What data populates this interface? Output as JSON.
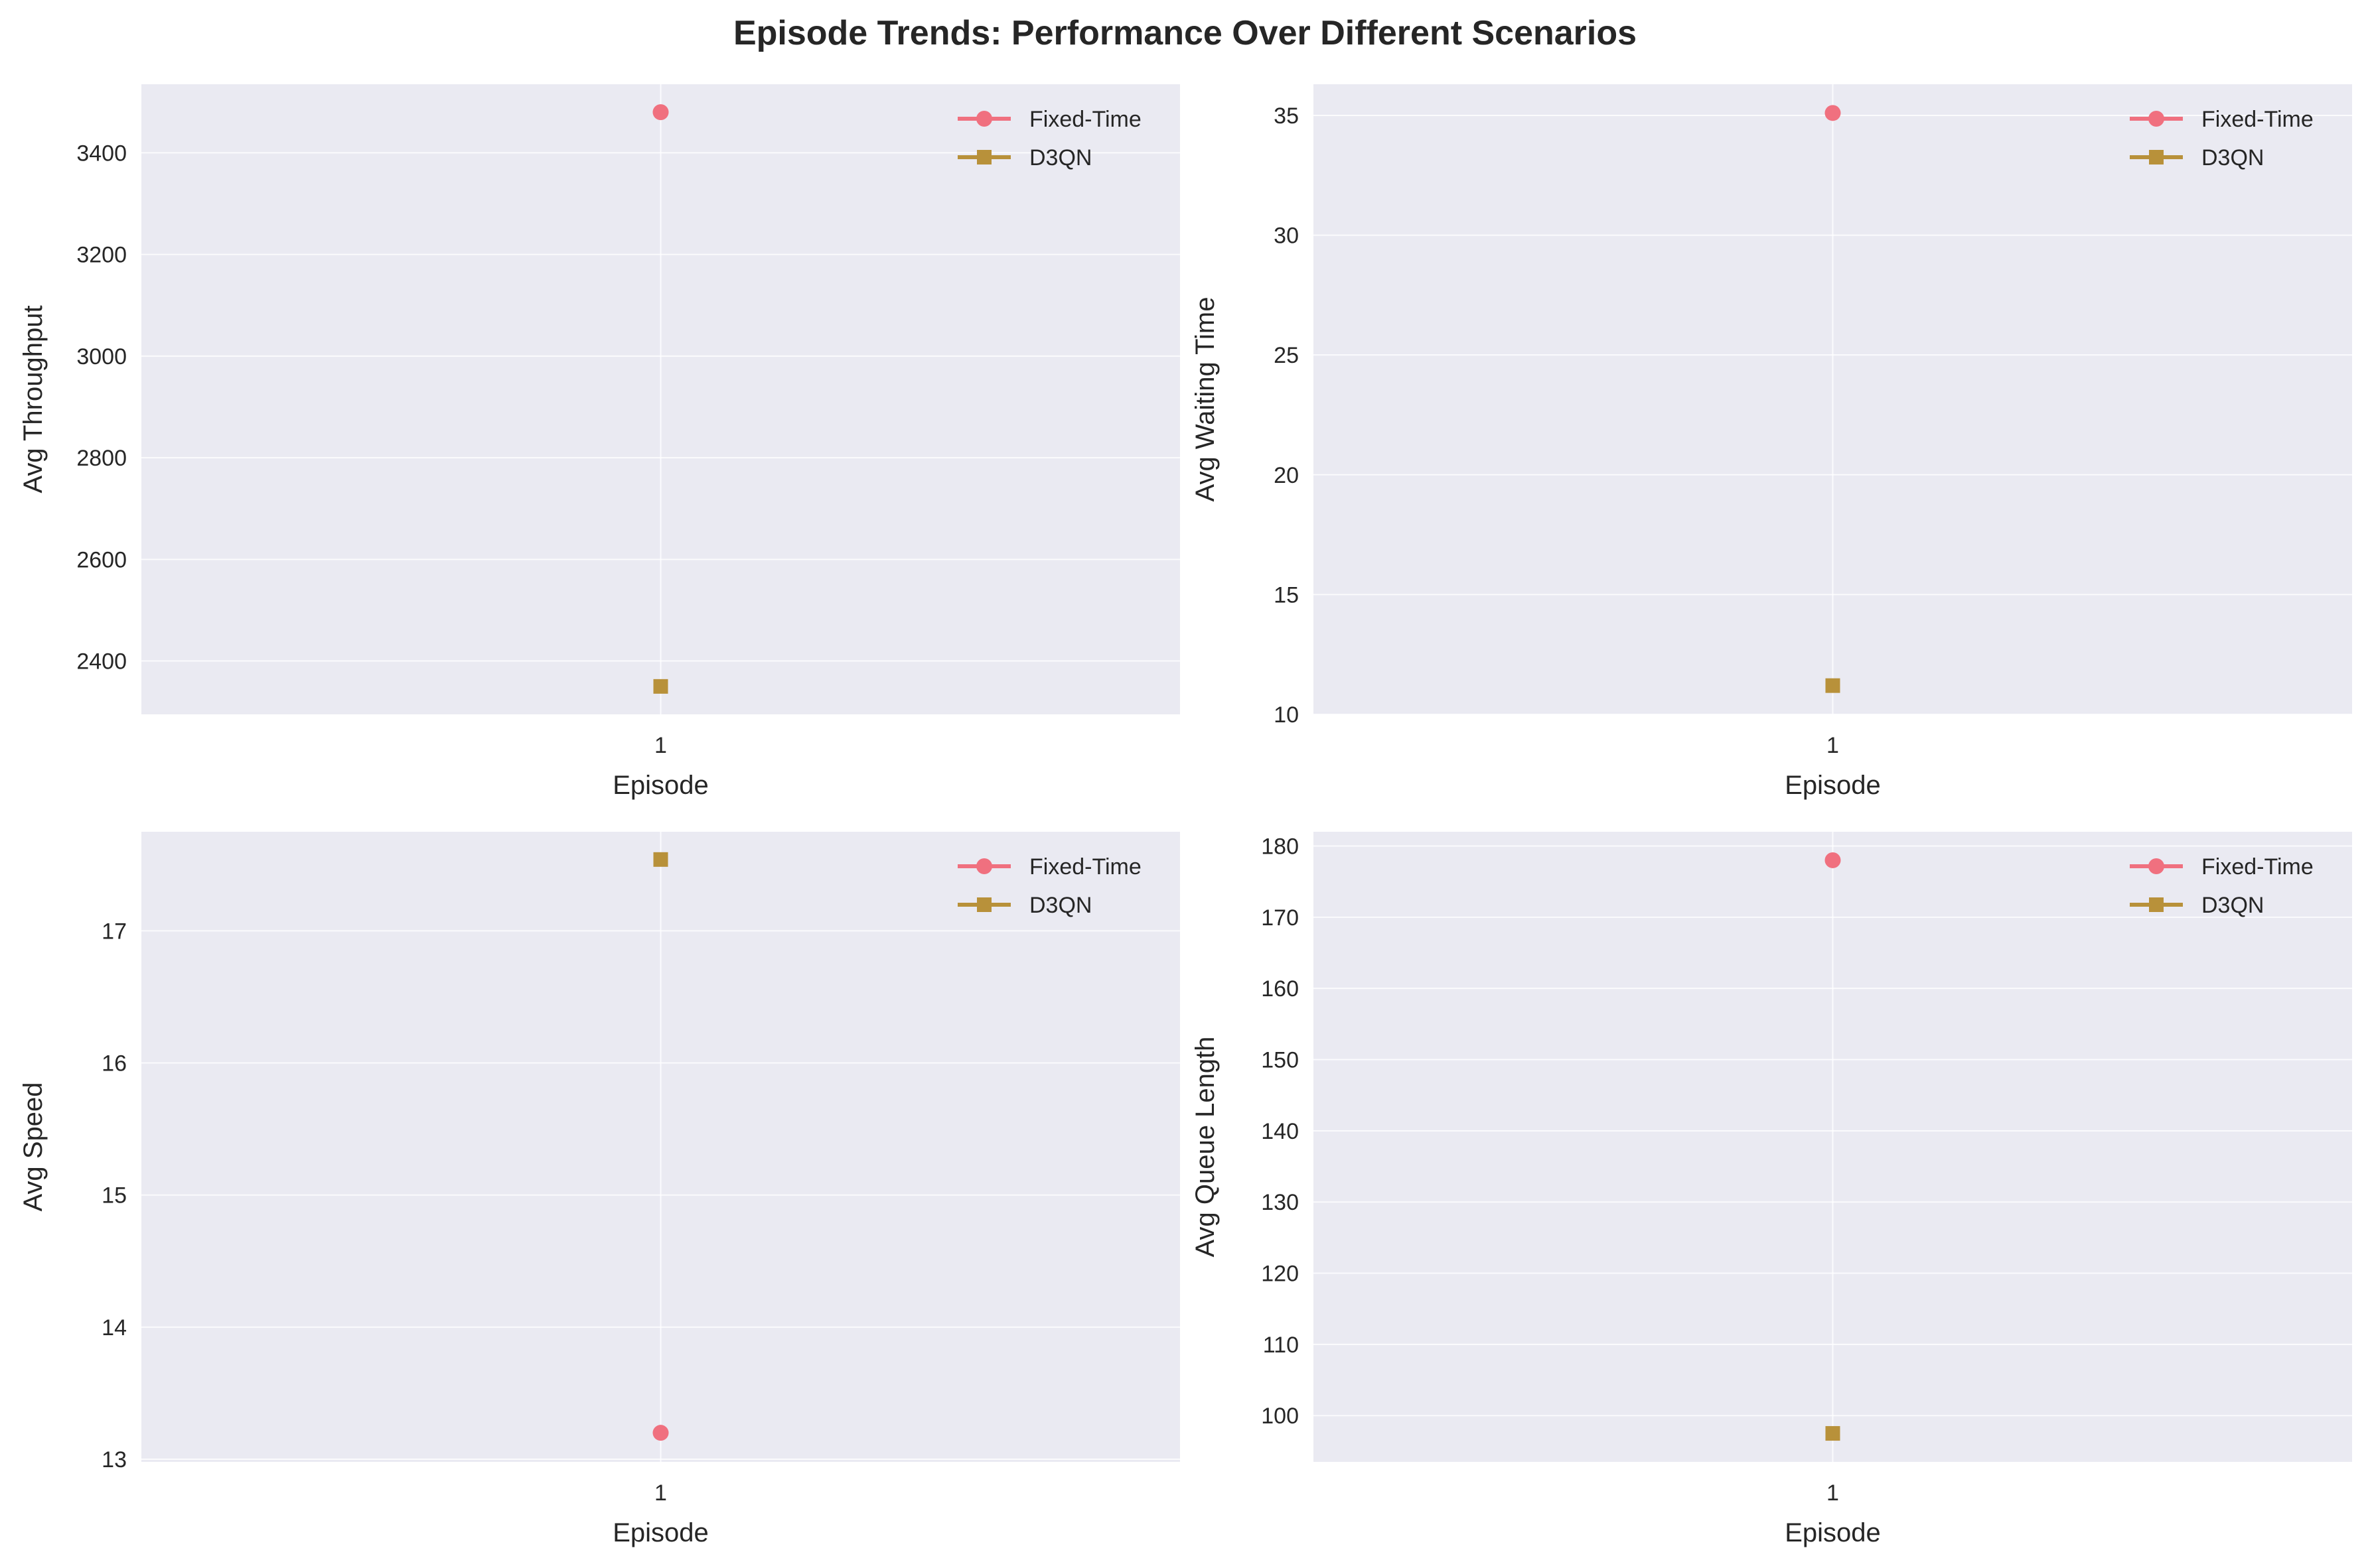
{
  "figure": {
    "title": "Episode Trends: Performance Over Different Scenarios"
  },
  "colors": {
    "panel_bg": "#EAEAF2",
    "grid": "#FFFFFF",
    "fixed_time": "#F0707F",
    "d3qn": "#B8913A"
  },
  "legend": {
    "placement": "upper right",
    "entries": [
      {
        "label": "Fixed-Time",
        "marker": "circle",
        "color_key": "fixed_time"
      },
      {
        "label": "D3QN",
        "marker": "square",
        "color_key": "d3qn"
      }
    ]
  },
  "chart_data": [
    {
      "type": "line",
      "xlabel": "Episode",
      "ylabel": "Avg Throughput",
      "x": [
        1
      ],
      "ylim": [
        2295,
        3535
      ],
      "yticks": [
        2400,
        2600,
        2800,
        3000,
        3200,
        3400
      ],
      "grid": true,
      "series": [
        {
          "name": "Fixed-Time",
          "values": [
            3480
          ]
        },
        {
          "name": "D3QN",
          "values": [
            2350
          ]
        }
      ]
    },
    {
      "type": "line",
      "xlabel": "Episode",
      "ylabel": "Avg Waiting Time",
      "x": [
        1
      ],
      "ylim": [
        10.0,
        36.3
      ],
      "yticks": [
        10,
        15,
        20,
        25,
        30,
        35
      ],
      "grid": true,
      "series": [
        {
          "name": "Fixed-Time",
          "values": [
            35.1
          ]
        },
        {
          "name": "D3QN",
          "values": [
            11.2
          ]
        }
      ]
    },
    {
      "type": "line",
      "xlabel": "Episode",
      "ylabel": "Avg Speed",
      "x": [
        1
      ],
      "ylim": [
        12.98,
        17.75
      ],
      "yticks": [
        13,
        14,
        15,
        16,
        17
      ],
      "grid": true,
      "series": [
        {
          "name": "Fixed-Time",
          "values": [
            13.2
          ]
        },
        {
          "name": "D3QN",
          "values": [
            17.54
          ]
        }
      ]
    },
    {
      "type": "line",
      "xlabel": "Episode",
      "ylabel": "Avg Queue Length",
      "x": [
        1
      ],
      "ylim": [
        93.5,
        182.0
      ],
      "yticks": [
        100,
        110,
        120,
        130,
        140,
        150,
        160,
        170,
        180
      ],
      "grid": true,
      "series": [
        {
          "name": "Fixed-Time",
          "values": [
            178
          ]
        },
        {
          "name": "D3QN",
          "values": [
            97.5
          ]
        }
      ]
    }
  ]
}
